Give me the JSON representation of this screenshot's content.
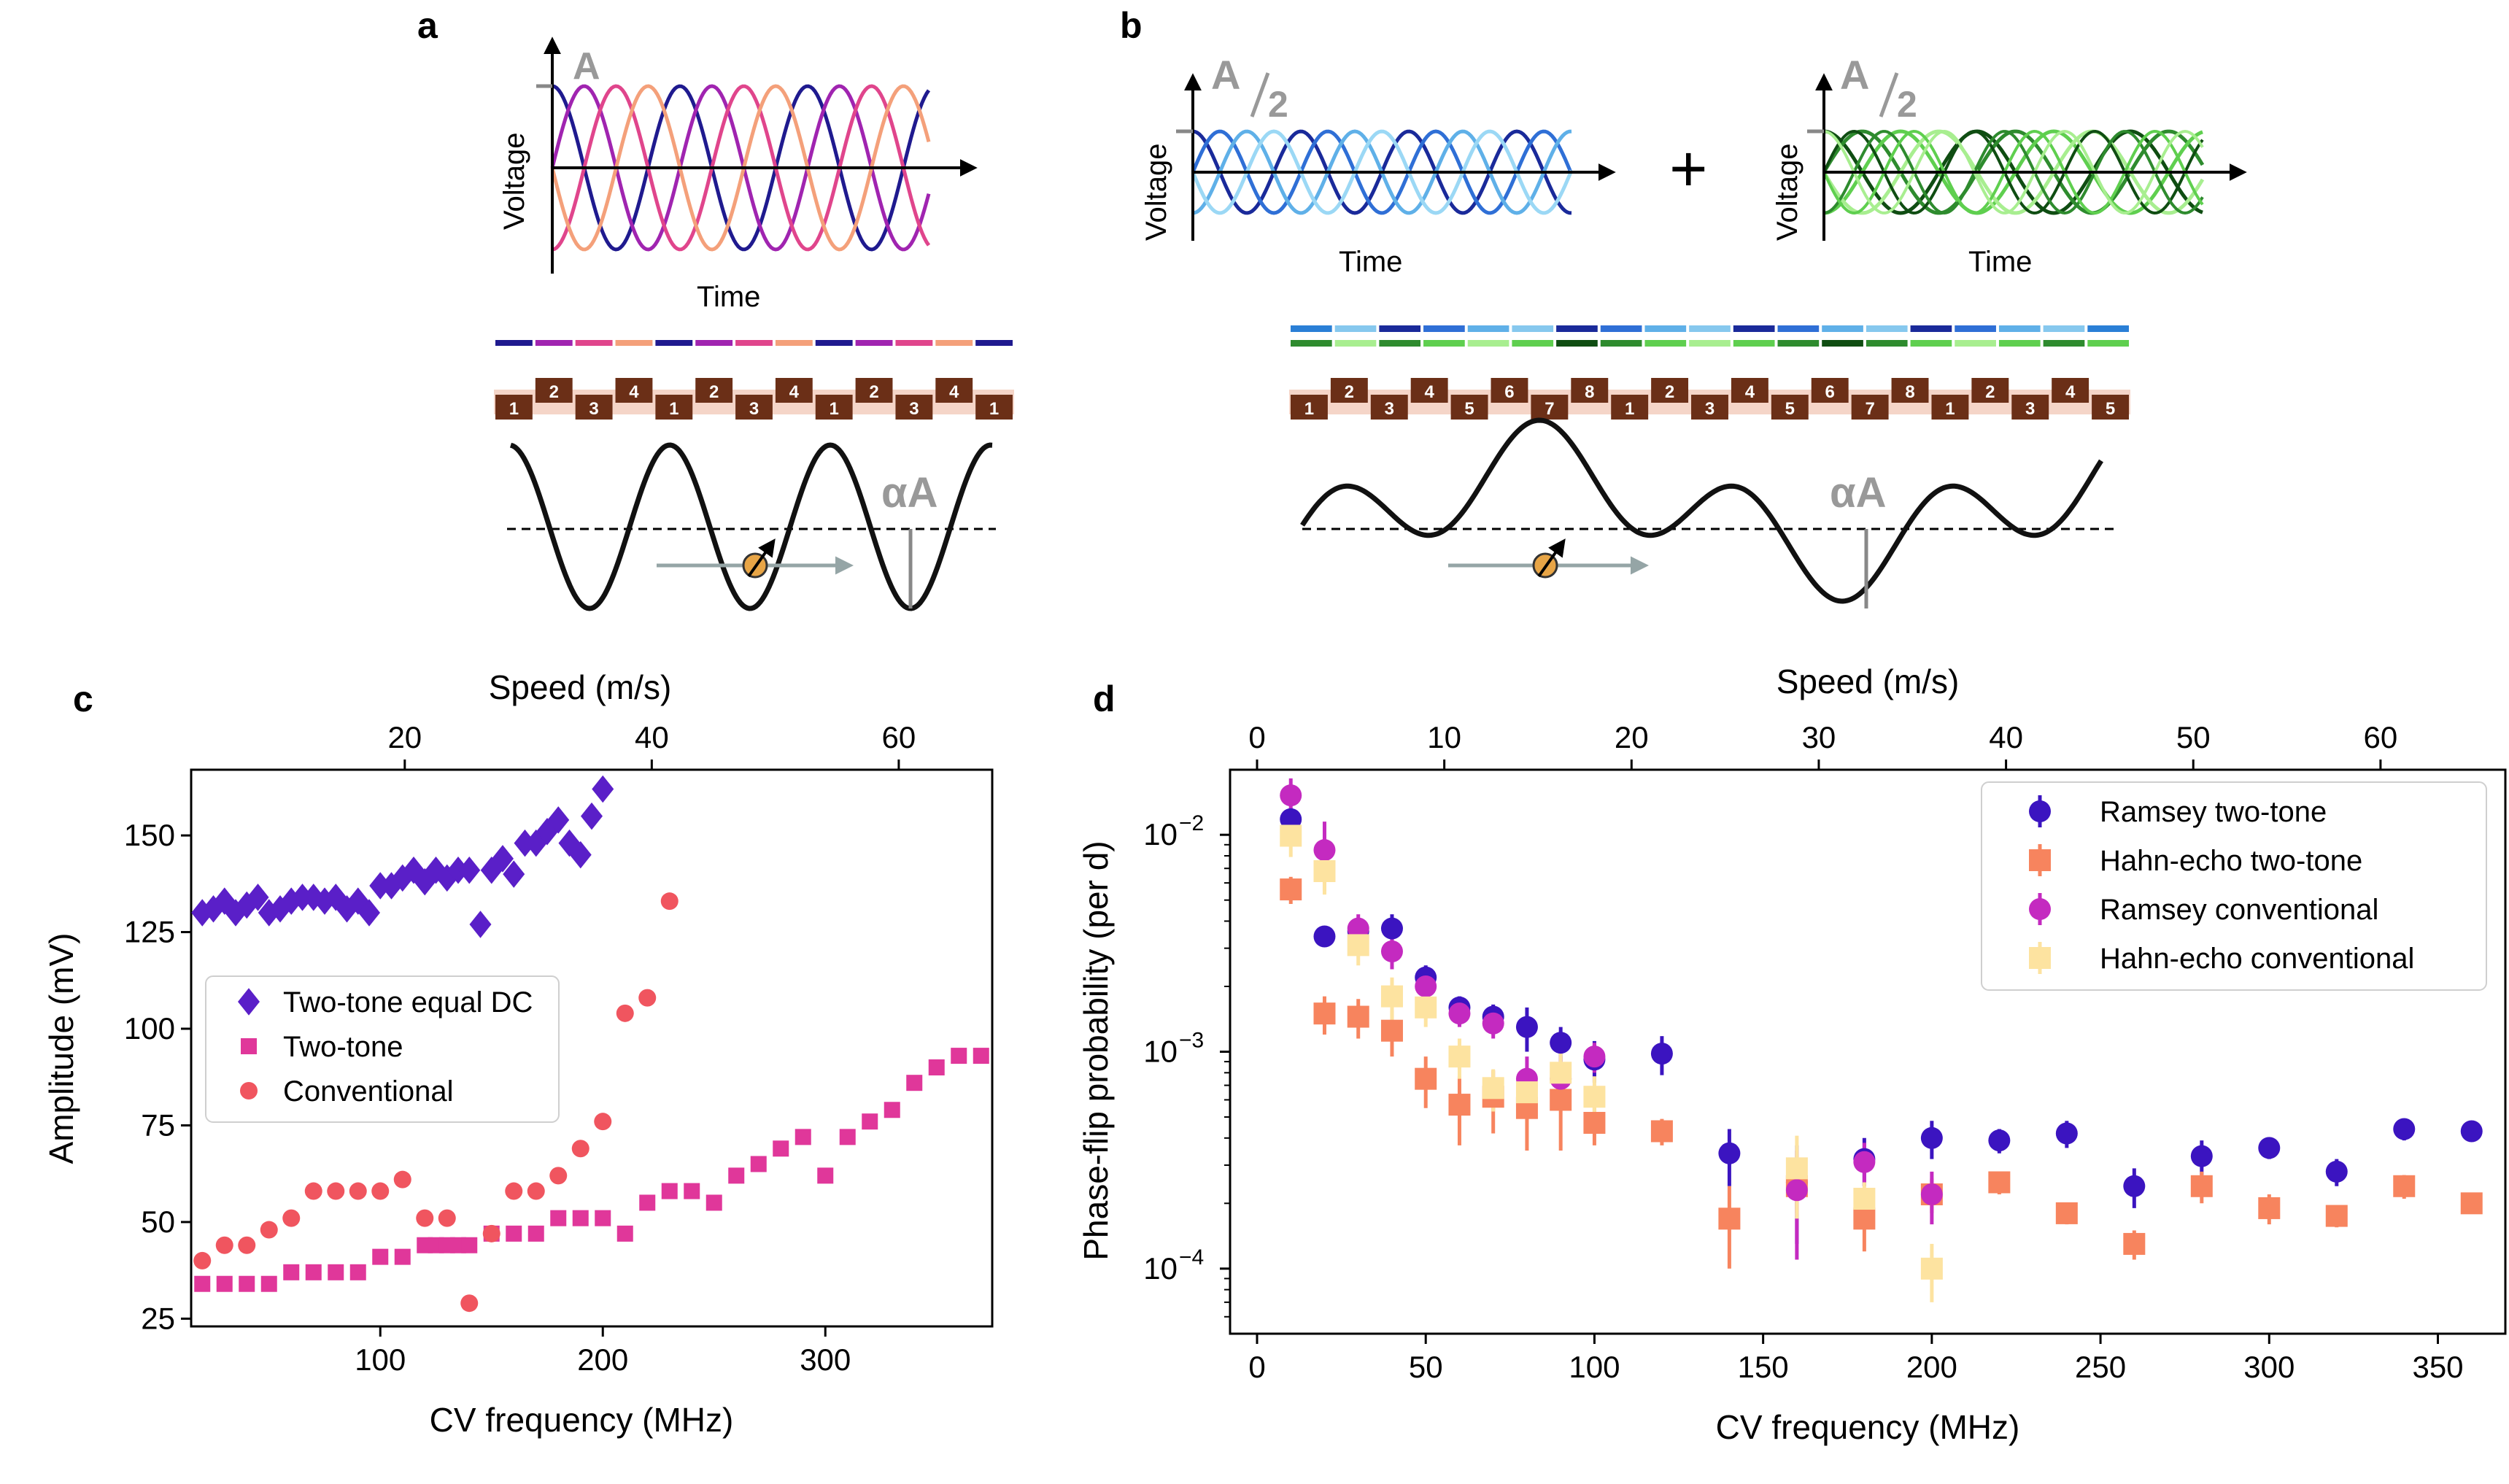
{
  "panels": {
    "a": {
      "letter": "a",
      "xlabel": "Time",
      "ylabel": "Voltage",
      "amp_label": "A",
      "alpha_label": "αA",
      "wave_colors": [
        "#1f1a8f",
        "#a024b0",
        "#e0458c",
        "#f4a07a"
      ],
      "phase_colors": [
        "#1f1a8f",
        "#a024b0",
        "#e0458c",
        "#f4a07a",
        "#1f1a8f",
        "#a024b0",
        "#e0458c",
        "#f4a07a",
        "#1f1a8f",
        "#a024b0",
        "#e0458c",
        "#f4a07a",
        "#1f1a8f"
      ],
      "gates": [
        "1",
        "2",
        "3",
        "4",
        "1",
        "2",
        "3",
        "4",
        "1",
        "2",
        "3",
        "4",
        "1"
      ]
    },
    "b": {
      "letter": "b",
      "xlabel_left": "Time",
      "xlabel_right": "Time",
      "ylabel": "Voltage",
      "amp_label": "A",
      "amp_divisor": "2",
      "plus": "+",
      "alpha_label": "αA",
      "blue_colors": [
        "#1a2a9a",
        "#2f6fd6",
        "#5fb0e8",
        "#9bd8f5"
      ],
      "green_colors": [
        "#0f4d12",
        "#2e8b2e",
        "#5fcf4f",
        "#a8ee90"
      ],
      "phase_colors_top": [
        "#2a7fd6",
        "#86c8ee",
        "#1a2a9a",
        "#2f6fd6",
        "#5fb0e8",
        "#86c8ee",
        "#1a2a9a",
        "#2f6fd6",
        "#5fb0e8",
        "#86c8ee",
        "#1a2a9a",
        "#2f6fd6",
        "#5fb0e8",
        "#86c8ee",
        "#1a2a9a",
        "#2f6fd6",
        "#5fb0e8",
        "#86c8ee",
        "#2a7fd6"
      ],
      "phase_colors_bottom": [
        "#2e8b2e",
        "#a8ee90",
        "#2e8b2e",
        "#5fcf4f",
        "#a8ee90",
        "#5fcf4f",
        "#0f4d12",
        "#2e8b2e",
        "#5fcf4f",
        "#a8ee90",
        "#5fcf4f",
        "#2e8b2e",
        "#0f4d12",
        "#2e8b2e",
        "#5fcf4f",
        "#a8ee90",
        "#5fcf4f",
        "#2e8b2e",
        "#5fcf4f"
      ],
      "gates": [
        "1",
        "2",
        "3",
        "4",
        "5",
        "6",
        "7",
        "8",
        "1",
        "2",
        "3",
        "4",
        "5",
        "6",
        "7",
        "8",
        "1",
        "2",
        "3",
        "4",
        "5"
      ]
    }
  },
  "chart_data": [
    {
      "panel": "c",
      "type": "scatter",
      "letter": "c",
      "xlabel": "CV frequency (MHz)",
      "ylabel": "Amplitude (mV)",
      "top_label": "Speed (m/s)",
      "xlim": [
        15,
        375
      ],
      "ylim": [
        23,
        167
      ],
      "xticks": [
        100,
        200,
        300
      ],
      "yticks": [
        25,
        50,
        75,
        100,
        125,
        150
      ],
      "top_ticks": [
        {
          "label": "20",
          "freq": 111
        },
        {
          "label": "40",
          "freq": 222
        },
        {
          "label": "60",
          "freq": 333
        }
      ],
      "series": [
        {
          "name": "Two-tone equal DC",
          "marker": "diamond",
          "color": "#5a1fc8",
          "x": [
            20,
            25,
            30,
            35,
            40,
            45,
            50,
            55,
            60,
            65,
            70,
            75,
            80,
            85,
            90,
            95,
            100,
            105,
            110,
            115,
            120,
            125,
            130,
            135,
            140,
            145,
            150,
            155,
            160,
            165,
            170,
            175,
            180,
            185,
            190,
            195,
            200
          ],
          "y": [
            130,
            131,
            133,
            130,
            132,
            134,
            130,
            131,
            133,
            134,
            134,
            133,
            134,
            131,
            133,
            130,
            137,
            137,
            139,
            141,
            138,
            141,
            139,
            141,
            141,
            127,
            141,
            144,
            140,
            148,
            148,
            151,
            154,
            148,
            145,
            155,
            162
          ]
        },
        {
          "name": "Two-tone",
          "marker": "square",
          "color": "#e0379a",
          "x": [
            20,
            30,
            40,
            50,
            60,
            70,
            80,
            90,
            100,
            110,
            120,
            125,
            130,
            135,
            140,
            150,
            160,
            170,
            180,
            190,
            200,
            210,
            220,
            230,
            240,
            250,
            260,
            270,
            280,
            290,
            300,
            310,
            320,
            330,
            340,
            350,
            360,
            370
          ],
          "y": [
            34,
            34,
            34,
            34,
            37,
            37,
            37,
            37,
            41,
            41,
            44,
            44,
            44,
            44,
            44,
            47,
            47,
            47,
            51,
            51,
            51,
            47,
            55,
            58,
            58,
            55,
            62,
            65,
            69,
            72,
            62,
            72,
            76,
            79,
            86,
            90,
            93,
            93
          ]
        },
        {
          "name": "Conventional",
          "marker": "circle",
          "color": "#f0555f",
          "x": [
            20,
            30,
            40,
            50,
            60,
            70,
            80,
            90,
            100,
            110,
            120,
            130,
            140,
            150,
            160,
            170,
            180,
            190,
            200,
            210,
            220,
            230
          ],
          "y": [
            40,
            44,
            44,
            48,
            51,
            58,
            58,
            58,
            58,
            61,
            51,
            51,
            29,
            47,
            58,
            58,
            62,
            69,
            76,
            104,
            108,
            133
          ]
        }
      ]
    },
    {
      "panel": "d",
      "type": "scatter",
      "letter": "d",
      "xlabel": "CV frequency (MHz)",
      "ylabel": "Phase-flip probability (per d)",
      "top_label": "Speed (m/s)",
      "xlim": [
        -8,
        370
      ],
      "ylim_log10": [
        -4.3,
        -1.7
      ],
      "xticks": [
        0,
        50,
        100,
        150,
        200,
        250,
        300,
        350
      ],
      "ytick_exponents": [
        -2,
        -3,
        -4
      ],
      "ytick_base": "10",
      "top_ticks": [
        {
          "label": "0",
          "freq": 0
        },
        {
          "label": "10",
          "freq": 55.5
        },
        {
          "label": "20",
          "freq": 111
        },
        {
          "label": "30",
          "freq": 166.5
        },
        {
          "label": "40",
          "freq": 222
        },
        {
          "label": "50",
          "freq": 277.5
        },
        {
          "label": "60",
          "freq": 333
        }
      ],
      "series": [
        {
          "name": "Ramsey two-tone",
          "marker": "circle",
          "color": "#3b14c0",
          "x": [
            10,
            20,
            30,
            40,
            50,
            60,
            70,
            80,
            90,
            100,
            120,
            140,
            160,
            180,
            200,
            220,
            240,
            260,
            280,
            300,
            320,
            340,
            360
          ],
          "y": [
            0.0118,
            0.0034,
            0.0036,
            0.0037,
            0.0022,
            0.0016,
            0.00145,
            0.0013,
            0.0011,
            0.00092,
            0.00098,
            0.00034,
            0.00025,
            0.00032,
            0.0004,
            0.00039,
            0.00042,
            0.00024,
            0.00033,
            0.00036,
            0.00028,
            0.00044,
            0.00043
          ],
          "err": [
            0.0015,
            0.0003,
            0.0004,
            0.0006,
            0.0003,
            0.0002,
            0.0002,
            0.0003,
            0.0002,
            0.0002,
            0.0002,
            0.0001,
            0.00012,
            8e-05,
            8e-05,
            5e-05,
            6e-05,
            5e-05,
            6e-05,
            4e-05,
            4e-05,
            5e-05,
            4e-05
          ]
        },
        {
          "name": "Hahn-echo two-tone",
          "marker": "square",
          "color": "#f7845e",
          "x": [
            10,
            20,
            30,
            40,
            50,
            60,
            70,
            80,
            90,
            100,
            120,
            140,
            160,
            180,
            200,
            220,
            240,
            260,
            280,
            300,
            320,
            340,
            360
          ],
          "y": [
            0.0056,
            0.0015,
            0.00145,
            0.00125,
            0.00075,
            0.00057,
            0.00062,
            0.00055,
            0.0006,
            0.00047,
            0.00043,
            0.00017,
            0.00024,
            0.00017,
            0.00022,
            0.00025,
            0.00018,
            0.00013,
            0.00024,
            0.00019,
            0.000175,
            0.00024,
            0.0002
          ],
          "err": [
            0.0008,
            0.0003,
            0.0003,
            0.0003,
            0.0002,
            0.0002,
            0.0002,
            0.0002,
            0.00025,
            0.0001,
            6e-05,
            7e-05,
            6e-05,
            5e-05,
            4e-05,
            3e-05,
            2e-05,
            2e-05,
            4e-05,
            3e-05,
            2e-05,
            3e-05,
            2e-05
          ]
        },
        {
          "name": "Ramsey conventional",
          "marker": "circle",
          "color": "#c42ac0",
          "x": [
            10,
            20,
            30,
            40,
            50,
            60,
            70,
            80,
            90,
            100,
            160,
            180,
            200
          ],
          "y": [
            0.0152,
            0.0085,
            0.0037,
            0.0029,
            0.002,
            0.0015,
            0.00135,
            0.00075,
            0.00075,
            0.00095,
            0.00023,
            0.00031,
            0.00022
          ],
          "err": [
            0.003,
            0.003,
            0.0006,
            0.0005,
            0.0003,
            0.0002,
            0.0002,
            0.0002,
            0.0002,
            0.00015,
            0.00012,
            7e-05,
            6e-05
          ]
        },
        {
          "name": "Hahn-echo conventional",
          "marker": "square",
          "color": "#fde3a0",
          "x": [
            10,
            20,
            30,
            40,
            50,
            60,
            70,
            80,
            90,
            100,
            160,
            180,
            200
          ],
          "y": [
            0.0099,
            0.0068,
            0.0031,
            0.0018,
            0.0016,
            0.00095,
            0.00068,
            0.00065,
            0.0008,
            0.00062,
            0.00029,
            0.00021,
            0.0001
          ],
          "err": [
            0.002,
            0.0015,
            0.0006,
            0.0004,
            0.0003,
            0.0002,
            0.00015,
            0.00015,
            0.0002,
            0.00015,
            0.00012,
            4e-05,
            3e-05
          ]
        }
      ]
    }
  ]
}
